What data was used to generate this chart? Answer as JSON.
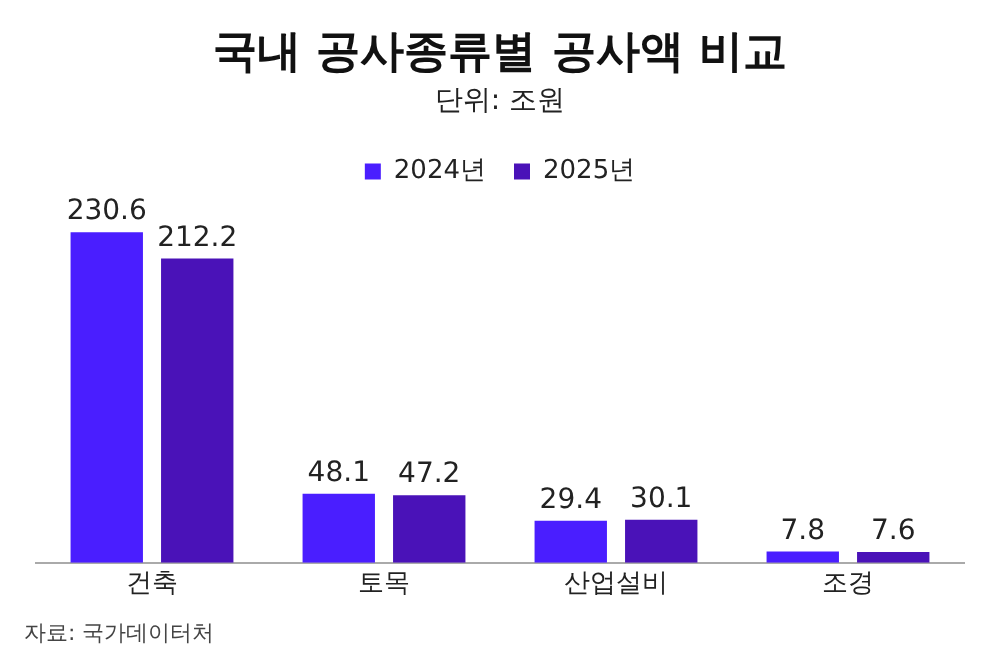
{
  "chart_data": {
    "type": "bar",
    "title": "국내 공사종류별 공사액 비교",
    "subtitle": "단위: 조원",
    "categories": [
      "건축",
      "토목",
      "산업설비",
      "조경"
    ],
    "series": [
      {
        "name": "2024년",
        "color": "#4a1eff",
        "values": [
          230.6,
          48.1,
          29.4,
          7.8
        ]
      },
      {
        "name": "2025년",
        "color": "#4a12b8",
        "values": [
          212.2,
          47.2,
          30.1,
          7.6
        ]
      }
    ],
    "data_labels": true,
    "legend": "top",
    "grid": false,
    "annotations": [
      "자료: 국가데이터처"
    ]
  }
}
